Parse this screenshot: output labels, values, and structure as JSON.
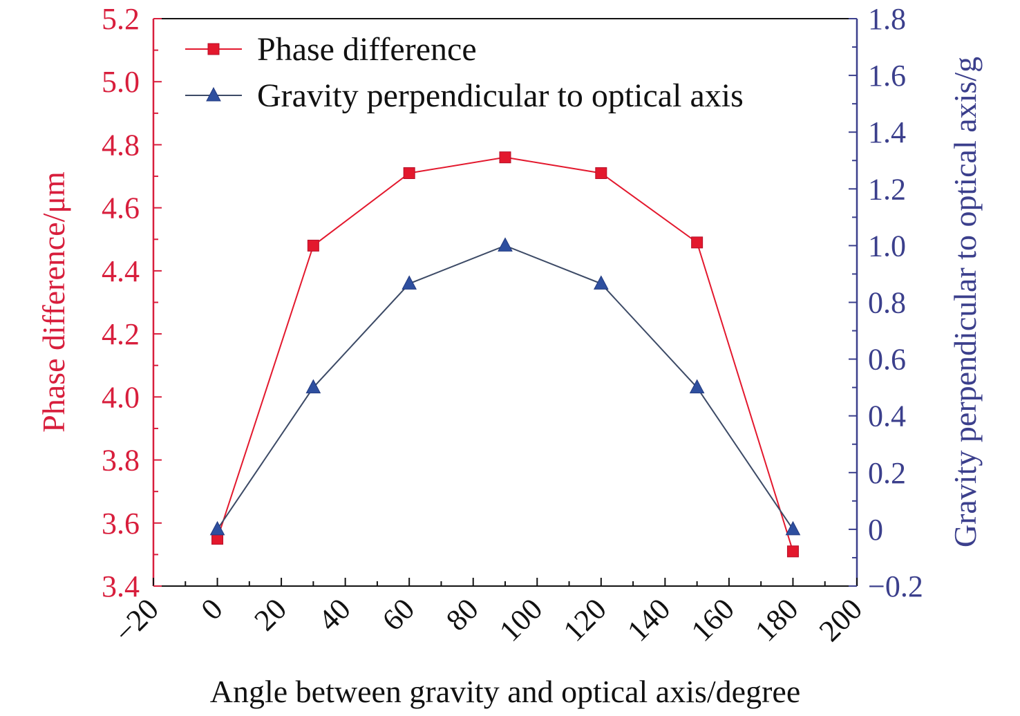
{
  "chart_data": {
    "type": "line",
    "xlabel": "Angle between gravity and optical axis/degree",
    "ylabel_left": "Phase difference/μm",
    "ylabel_right": "Gravity perpendicular to optical axis/g",
    "xlim": [
      -20,
      200
    ],
    "ylim_left": [
      3.4,
      5.2
    ],
    "ylim_right": [
      -0.2,
      1.8
    ],
    "x_ticks": [
      -20,
      0,
      20,
      40,
      60,
      80,
      100,
      120,
      140,
      160,
      180,
      200
    ],
    "x_tick_labels": [
      "−20",
      "0",
      "20",
      "40",
      "60",
      "80",
      "100",
      "120",
      "140",
      "160",
      "180",
      "200"
    ],
    "y_left_ticks": [
      3.4,
      3.6,
      3.8,
      4.0,
      4.2,
      4.4,
      4.6,
      4.8,
      5.0,
      5.2
    ],
    "y_left_tick_labels": [
      "3.4",
      "3.6",
      "3.8",
      "4.0",
      "4.2",
      "4.4",
      "4.6",
      "4.8",
      "5.0",
      "5.2"
    ],
    "y_right_ticks": [
      -0.2,
      0,
      0.2,
      0.4,
      0.6,
      0.8,
      1.0,
      1.2,
      1.4,
      1.6,
      1.8
    ],
    "y_right_tick_labels": [
      "−0.2",
      "0",
      "0.2",
      "0.4",
      "0.6",
      "0.8",
      "1.0",
      "1.2",
      "1.4",
      "1.6",
      "1.8"
    ],
    "grid": false,
    "legend_position": "top-left",
    "x": [
      0,
      30,
      60,
      90,
      120,
      150,
      180
    ],
    "series": [
      {
        "name": "Phase difference",
        "axis": "left",
        "marker": "square",
        "color": "#e3182d",
        "values": [
          3.55,
          4.48,
          4.71,
          4.76,
          4.71,
          4.49,
          3.51
        ]
      },
      {
        "name": "Gravity perpendicular to optical axis",
        "axis": "right",
        "marker": "triangle",
        "color": "#2e4f9f",
        "line_color": "#3c4a66",
        "values": [
          0,
          0.5,
          0.866,
          1.0,
          0.866,
          0.5,
          0
        ]
      }
    ],
    "colors": {
      "left_axis": "#d81e3c",
      "right_axis": "#3b3f8c",
      "frame": "#111111"
    }
  }
}
